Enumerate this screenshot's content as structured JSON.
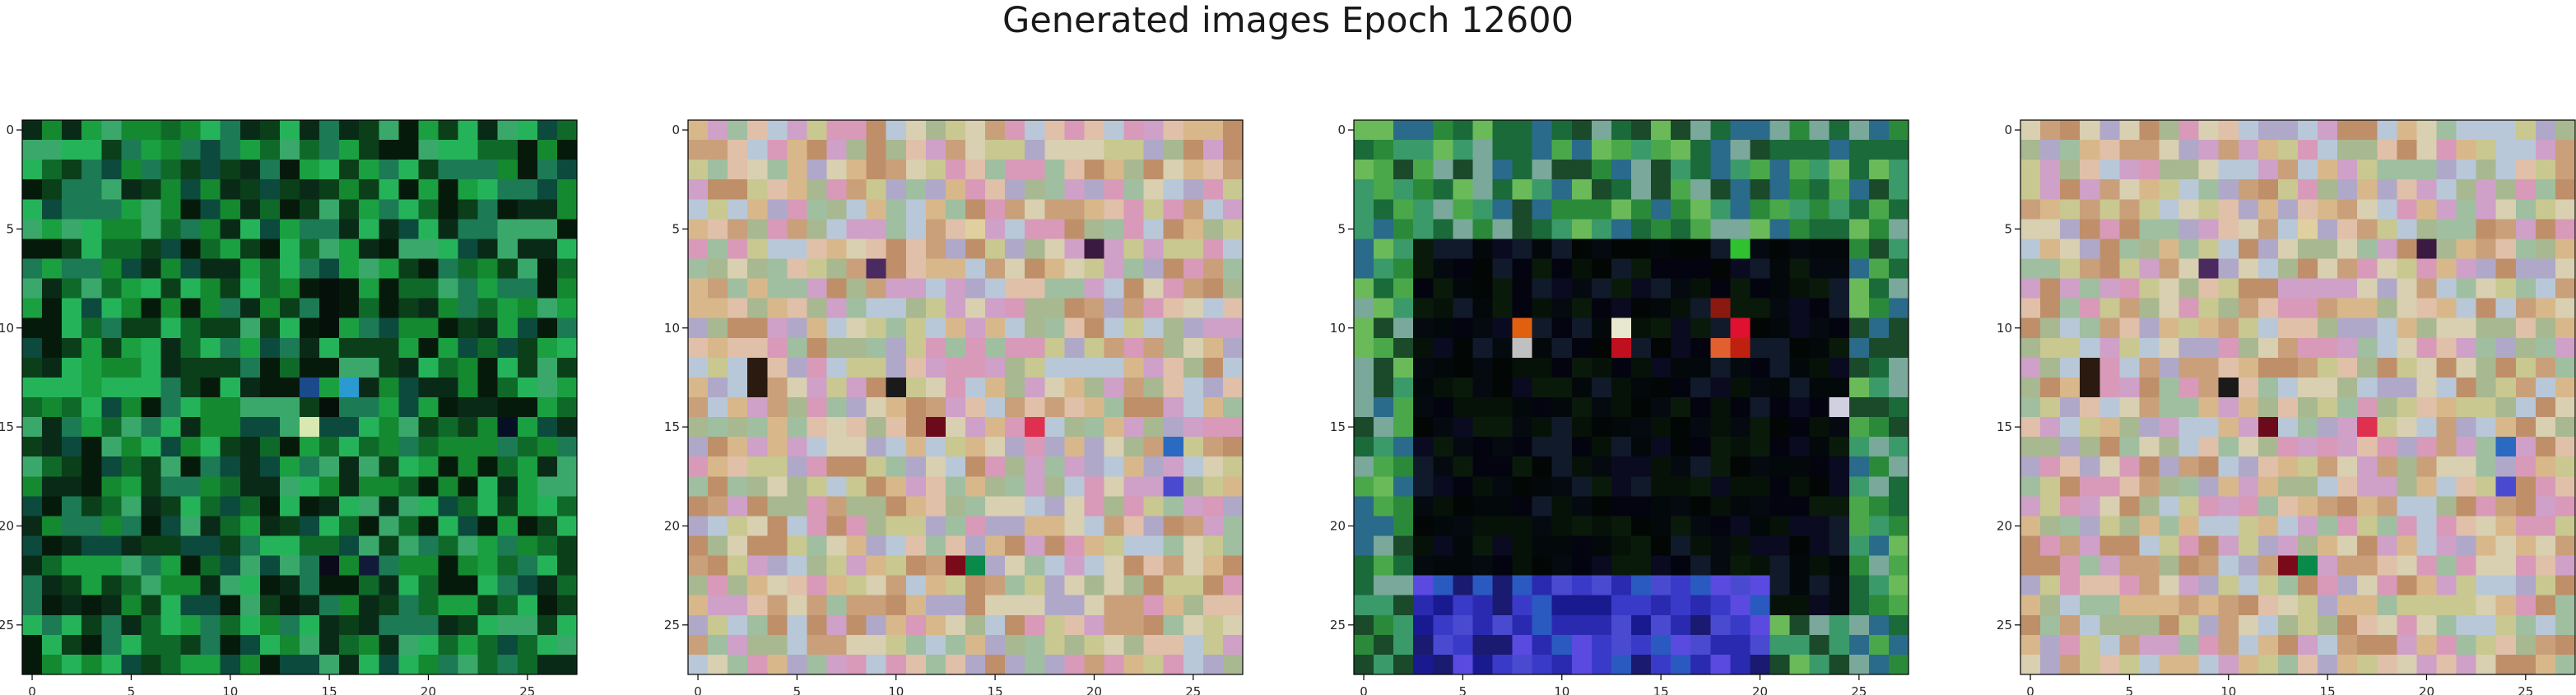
{
  "title": "Generated images Epoch 12600",
  "chart_data": [
    {
      "type": "heatmap",
      "title": "",
      "xlabel": "",
      "ylabel": "",
      "xlim": [
        -0.5,
        27.5
      ],
      "ylim": [
        27.5,
        -0.5
      ],
      "x_ticks": [
        0,
        5,
        10,
        15,
        20,
        25
      ],
      "y_ticks": [
        0,
        5,
        10,
        15,
        20,
        25
      ],
      "grid_size": [
        28,
        28
      ],
      "palette": [
        "#0a3f1a",
        "#0f6a2a",
        "#14892f",
        "#1aa040",
        "#25b35a",
        "#0b4a3c",
        "#1c7a55",
        "#0a2a18",
        "#3aa86a",
        "#061a0c"
      ],
      "features": [
        {
          "row": 8,
          "col": 15,
          "color": "#05100a"
        },
        {
          "row": 9,
          "col": 15,
          "color": "#05100a"
        },
        {
          "row": 10,
          "col": 15,
          "color": "#05100a"
        },
        {
          "row": 13,
          "col": 14,
          "color": "#1a4a8a"
        },
        {
          "row": 14,
          "col": 15,
          "color": "#05100a"
        },
        {
          "row": 15,
          "col": 14,
          "color": "#d8e8b0"
        },
        {
          "row": 13,
          "col": 16,
          "color": "#2a9ad0"
        },
        {
          "row": 15,
          "col": 24,
          "color": "#051025"
        },
        {
          "row": 22,
          "col": 15,
          "color": "#0a0a1a"
        },
        {
          "row": 22,
          "col": 17,
          "color": "#121a3a"
        }
      ]
    },
    {
      "type": "heatmap",
      "title": "",
      "xlabel": "",
      "ylabel": "",
      "xlim": [
        -0.5,
        27.5
      ],
      "ylim": [
        27.5,
        -0.5
      ],
      "x_ticks": [
        0,
        5,
        10,
        15,
        20,
        25
      ],
      "y_ticks": [
        0,
        5,
        10,
        15,
        20,
        25
      ],
      "grid_size": [
        28,
        28
      ],
      "palette": [
        "#c9a07a",
        "#d8b88a",
        "#b0a8c8",
        "#d89ab8",
        "#c8c890",
        "#a8b890",
        "#e0c0a8",
        "#bf8f6a",
        "#9fbfa0",
        "#cfa0c8",
        "#d8d0b0",
        "#b8c8d8"
      ],
      "features": [
        {
          "row": 12,
          "col": 3,
          "color": "#2a1a10"
        },
        {
          "row": 13,
          "col": 3,
          "color": "#2a1a10"
        },
        {
          "row": 15,
          "col": 12,
          "color": "#6a0a1a"
        },
        {
          "row": 13,
          "col": 10,
          "color": "#1a1a1a"
        },
        {
          "row": 7,
          "col": 9,
          "color": "#4a2a60"
        },
        {
          "row": 22,
          "col": 13,
          "color": "#7a0a1a"
        },
        {
          "row": 22,
          "col": 14,
          "color": "#0a8a4a"
        },
        {
          "row": 15,
          "col": 17,
          "color": "#e03050"
        },
        {
          "row": 18,
          "col": 24,
          "color": "#4a4ad0"
        },
        {
          "row": 16,
          "col": 24,
          "color": "#2a6ac0"
        },
        {
          "row": 6,
          "col": 20,
          "color": "#3a1a40"
        },
        {
          "row": 5,
          "col": 14,
          "color": "#e0d0a0"
        }
      ]
    },
    {
      "type": "heatmap",
      "title": "",
      "xlabel": "",
      "ylabel": "",
      "xlim": [
        -0.5,
        27.5
      ],
      "ylim": [
        27.5,
        -0.5
      ],
      "x_ticks": [
        0,
        5,
        10,
        15,
        20,
        25
      ],
      "y_ticks": [
        0,
        5,
        10,
        15,
        20,
        25
      ],
      "grid_size": [
        28,
        28
      ],
      "palette": [
        "#2a8a3a",
        "#4aa84a",
        "#1a6a3a",
        "#6aba5a",
        "#3a9a6a",
        "#2a6a8a",
        "#7aa89a",
        "#1a4a2a"
      ],
      "inner_palette": [
        "#020604",
        "#050a10",
        "#0a1a0a",
        "#040410",
        "#0a0a20",
        "#061208",
        "#101a2a",
        "#03080a"
      ],
      "inner_box": [
        6,
        3,
        24,
        24
      ],
      "bottom_palette": [
        "#2a2ab0",
        "#4a4ad0",
        "#1a1a90",
        "#3a3ac8",
        "#2a5ac0",
        "#5a4ae0",
        "#1a1a70"
      ],
      "features": [
        {
          "row": 10,
          "col": 13,
          "color": "#e8e8d0"
        },
        {
          "row": 11,
          "col": 13,
          "color": "#c01020"
        },
        {
          "row": 10,
          "col": 19,
          "color": "#e01030"
        },
        {
          "row": 11,
          "col": 18,
          "color": "#e06030"
        },
        {
          "row": 11,
          "col": 19,
          "color": "#c02010"
        },
        {
          "row": 10,
          "col": 8,
          "color": "#e06010"
        },
        {
          "row": 11,
          "col": 8,
          "color": "#c0c0c0"
        },
        {
          "row": 9,
          "col": 18,
          "color": "#8a1a10"
        },
        {
          "row": 6,
          "col": 19,
          "color": "#30c030"
        },
        {
          "row": 14,
          "col": 24,
          "color": "#d0d0e0"
        }
      ]
    },
    {
      "type": "heatmap",
      "title": "",
      "xlabel": "",
      "ylabel": "",
      "xlim": [
        -0.5,
        27.5
      ],
      "ylim": [
        27.5,
        -0.5
      ],
      "x_ticks": [
        0,
        5,
        10,
        15,
        20,
        25
      ],
      "y_ticks": [
        0,
        5,
        10,
        15,
        20,
        25
      ],
      "grid_size": [
        28,
        28
      ],
      "palette": [
        "#c9a07a",
        "#d8b88a",
        "#b0a8c8",
        "#d89ab8",
        "#c8c890",
        "#a8b890",
        "#e0c0a8",
        "#bf8f6a",
        "#9fbfa0",
        "#cfa0c8",
        "#d8d0b0",
        "#b8c8d8"
      ],
      "features": [
        {
          "row": 12,
          "col": 3,
          "color": "#2a1a10"
        },
        {
          "row": 13,
          "col": 3,
          "color": "#2a1a10"
        },
        {
          "row": 15,
          "col": 12,
          "color": "#6a0a1a"
        },
        {
          "row": 13,
          "col": 10,
          "color": "#1a1a1a"
        },
        {
          "row": 7,
          "col": 9,
          "color": "#4a2a60"
        },
        {
          "row": 22,
          "col": 13,
          "color": "#7a0a1a"
        },
        {
          "row": 22,
          "col": 14,
          "color": "#0a8a4a"
        },
        {
          "row": 15,
          "col": 17,
          "color": "#e03050"
        },
        {
          "row": 18,
          "col": 24,
          "color": "#4a4ad0"
        },
        {
          "row": 16,
          "col": 24,
          "color": "#2a6ac0"
        },
        {
          "row": 6,
          "col": 20,
          "color": "#3a1a40"
        },
        {
          "row": 5,
          "col": 14,
          "color": "#e0d0a0"
        }
      ]
    }
  ]
}
